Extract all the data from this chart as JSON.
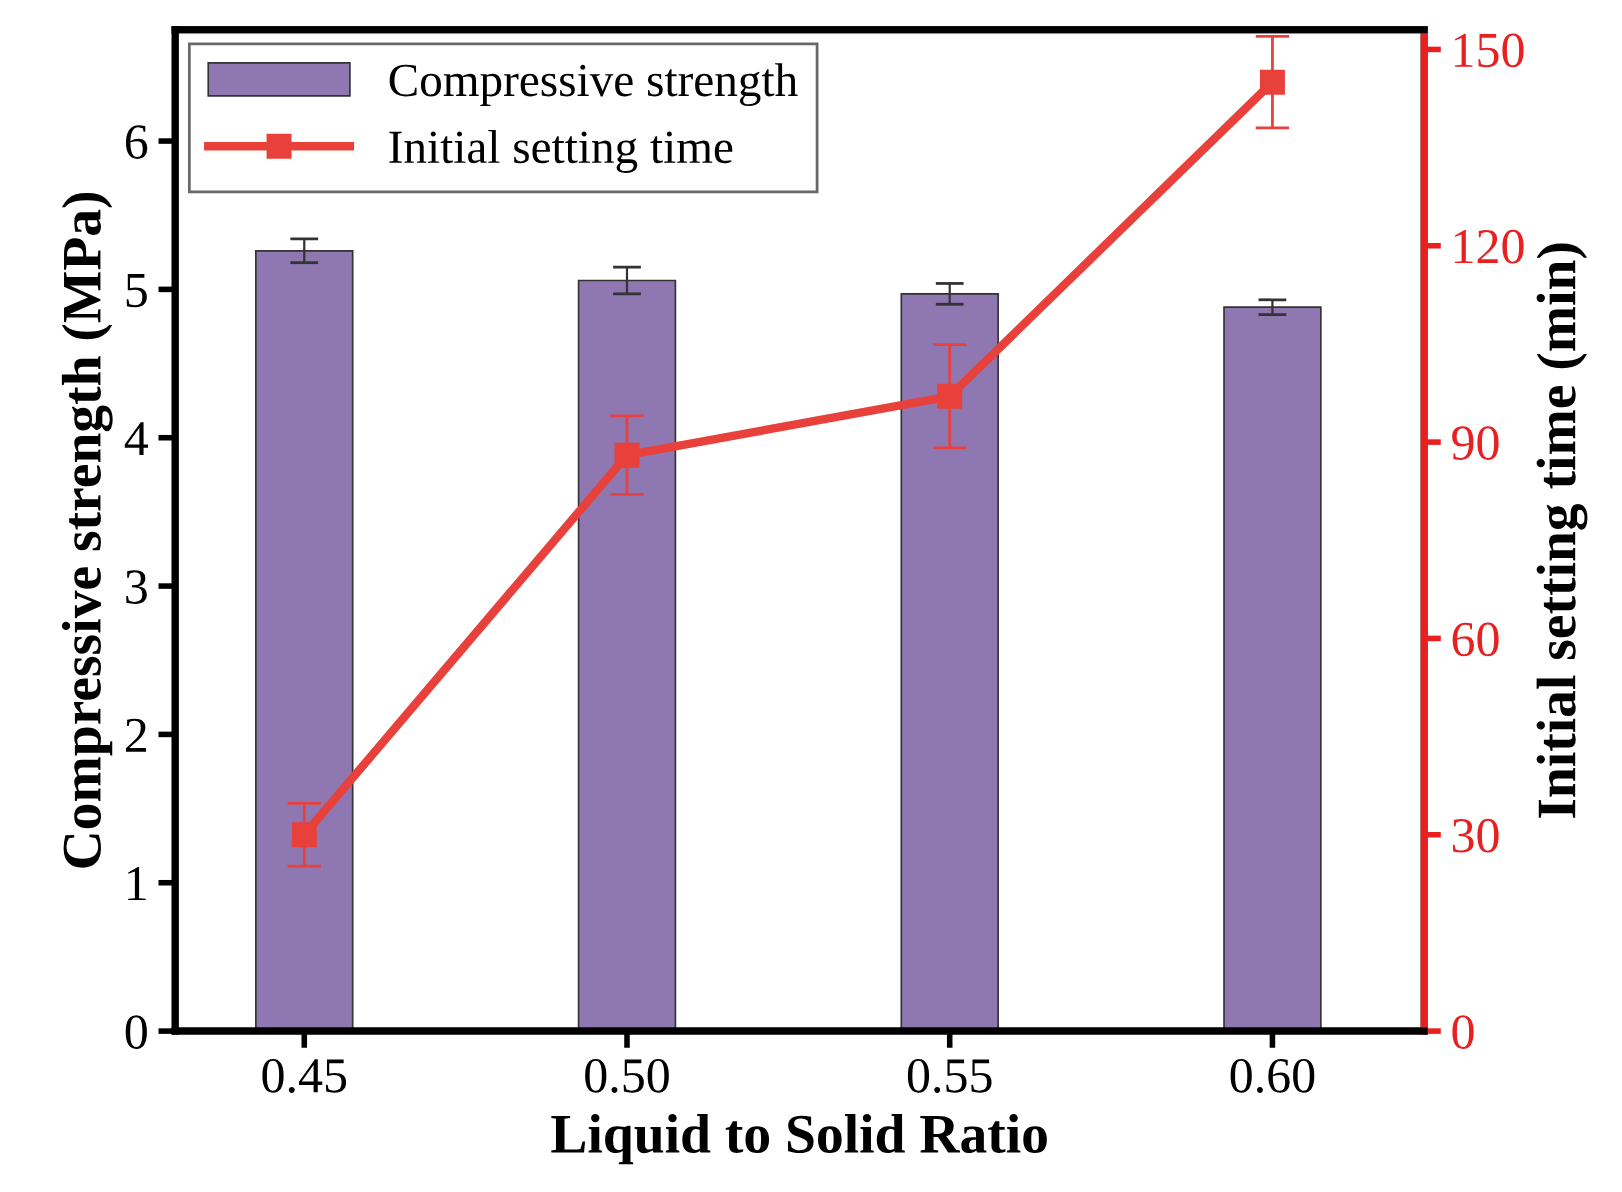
{
  "chart_data": {
    "type": "bar",
    "xlabel": "Liquid to Solid Ratio",
    "ylabel": "Compressive strength (MPa)",
    "y2label": "Initial setting time (min)",
    "categories": [
      "0.45",
      "0.50",
      "0.55",
      "0.60"
    ],
    "series": [
      {
        "name": "Compressive strength",
        "color": "#8f77b2",
        "values": [
          5.26,
          5.06,
          4.97,
          4.88
        ],
        "errors": [
          0.08,
          0.09,
          0.07,
          0.05
        ]
      },
      {
        "name": "Initial setting time",
        "type": "line",
        "axis": "y2",
        "color": "#e8413c",
        "marker": "square",
        "values": [
          30,
          88,
          97,
          145
        ],
        "errors": [
          4.8,
          6,
          7.9,
          7
        ]
      }
    ],
    "ylim": [
      0,
      6.75
    ],
    "yticks": [
      0,
      1,
      2,
      3,
      4,
      5,
      6
    ],
    "y2lim": [
      0,
      153
    ],
    "y2ticks": [
      0,
      30,
      60,
      90,
      120,
      150
    ],
    "legend": "top left",
    "grid": false
  }
}
